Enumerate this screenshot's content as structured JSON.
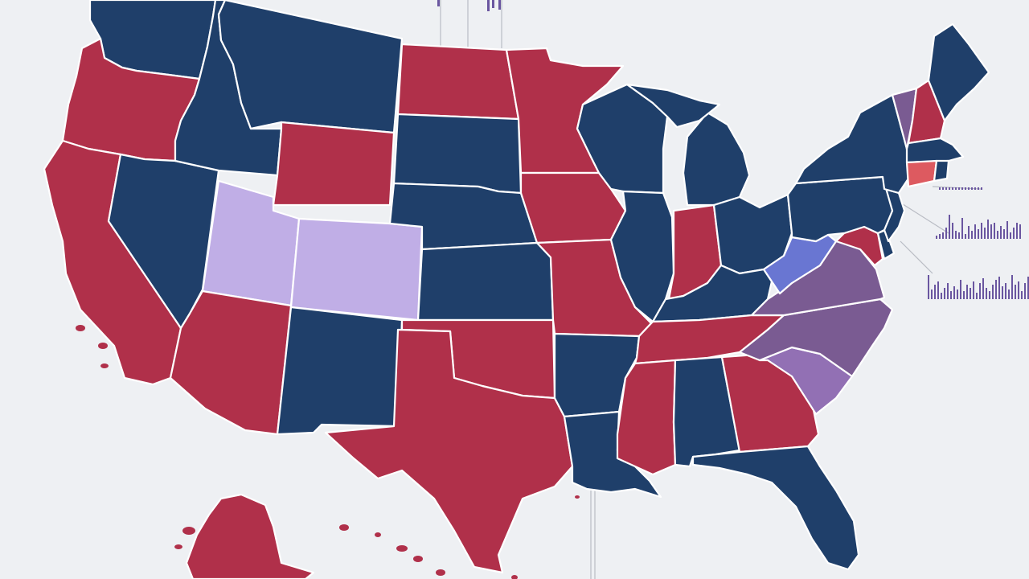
{
  "map": {
    "colors": {
      "red": "#b0304a",
      "blue": "#1f3f6a",
      "lavender": "#c0aee6",
      "purple": "#7a5b92",
      "light_purple": "#9270b4",
      "periwinkle": "#6976d2",
      "salmon": "#dd5a60",
      "background": "#eef0f3",
      "border": "#ffffff",
      "decor_bar": "#6a56a0"
    },
    "states": [
      {
        "id": "WA",
        "fill": "blue"
      },
      {
        "id": "OR",
        "fill": "red"
      },
      {
        "id": "CA",
        "fill": "red"
      },
      {
        "id": "NV",
        "fill": "blue"
      },
      {
        "id": "ID",
        "fill": "blue"
      },
      {
        "id": "MT",
        "fill": "blue"
      },
      {
        "id": "WY",
        "fill": "red"
      },
      {
        "id": "UT",
        "fill": "lavender"
      },
      {
        "id": "CO",
        "fill": "lavender"
      },
      {
        "id": "AZ",
        "fill": "red"
      },
      {
        "id": "NM",
        "fill": "blue"
      },
      {
        "id": "ND",
        "fill": "red"
      },
      {
        "id": "SD",
        "fill": "blue"
      },
      {
        "id": "NE",
        "fill": "blue"
      },
      {
        "id": "KS",
        "fill": "blue"
      },
      {
        "id": "OK",
        "fill": "red"
      },
      {
        "id": "TX",
        "fill": "red"
      },
      {
        "id": "MN",
        "fill": "red"
      },
      {
        "id": "IA",
        "fill": "red"
      },
      {
        "id": "MO",
        "fill": "red"
      },
      {
        "id": "AR",
        "fill": "blue"
      },
      {
        "id": "LA",
        "fill": "blue"
      },
      {
        "id": "WI",
        "fill": "blue"
      },
      {
        "id": "IL",
        "fill": "blue"
      },
      {
        "id": "MI",
        "fill": "blue"
      },
      {
        "id": "IN",
        "fill": "red"
      },
      {
        "id": "OH",
        "fill": "blue"
      },
      {
        "id": "KY",
        "fill": "blue"
      },
      {
        "id": "TN",
        "fill": "red"
      },
      {
        "id": "MS",
        "fill": "red"
      },
      {
        "id": "AL",
        "fill": "blue"
      },
      {
        "id": "GA",
        "fill": "red"
      },
      {
        "id": "FL",
        "fill": "blue"
      },
      {
        "id": "SC",
        "fill": "light_purple"
      },
      {
        "id": "NC",
        "fill": "purple"
      },
      {
        "id": "VA",
        "fill": "purple"
      },
      {
        "id": "WV",
        "fill": "periwinkle"
      },
      {
        "id": "PA",
        "fill": "blue"
      },
      {
        "id": "NY",
        "fill": "blue"
      },
      {
        "id": "VT",
        "fill": "purple"
      },
      {
        "id": "NH",
        "fill": "red"
      },
      {
        "id": "ME",
        "fill": "blue"
      },
      {
        "id": "MA",
        "fill": "blue"
      },
      {
        "id": "CT",
        "fill": "salmon"
      },
      {
        "id": "RI",
        "fill": "blue"
      },
      {
        "id": "NJ",
        "fill": "blue"
      },
      {
        "id": "DE",
        "fill": "blue"
      },
      {
        "id": "MD",
        "fill": "red"
      },
      {
        "id": "AK",
        "fill": "red"
      }
    ]
  }
}
